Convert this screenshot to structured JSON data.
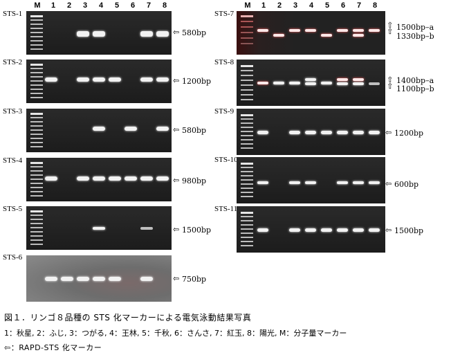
{
  "lanes": [
    "M",
    "1",
    "2",
    "3",
    "4",
    "5",
    "6",
    "7",
    "8"
  ],
  "left_panels": [
    {
      "label": "STS-1",
      "size": "580bp"
    },
    {
      "label": "STS-2",
      "size": "1200bp"
    },
    {
      "label": "STS-3",
      "size": "580bp"
    },
    {
      "label": "STS-4",
      "size": "980bp"
    },
    {
      "label": "STS-5",
      "size": "1500bp"
    },
    {
      "label": "STS-6",
      "size": "750bp"
    }
  ],
  "right_panels": [
    {
      "label": "STS-7",
      "size_a": "1500bp–a",
      "size_b": "1330bp–b"
    },
    {
      "label": "STS-8",
      "size_a": "1400bp–a",
      "size_b": "1100bp–b"
    },
    {
      "label": "STS-9",
      "size": "1200bp"
    },
    {
      "label": "STS-10",
      "size": "600bp"
    },
    {
      "label": "STS-11",
      "size": "1500bp"
    }
  ],
  "caption": {
    "line1": "図１．リンゴ８品種の STS 化マーカーによる電気泳動結果写真",
    "line2": "1：秋星, 2：ふじ, 3：つがる, 4：王林, 5：千秋, 6：さんさ, 7：紅玉, 8：陽光, M：分子量マーカー",
    "line3": "⇦：RAPD-STS 化マーカー"
  }
}
